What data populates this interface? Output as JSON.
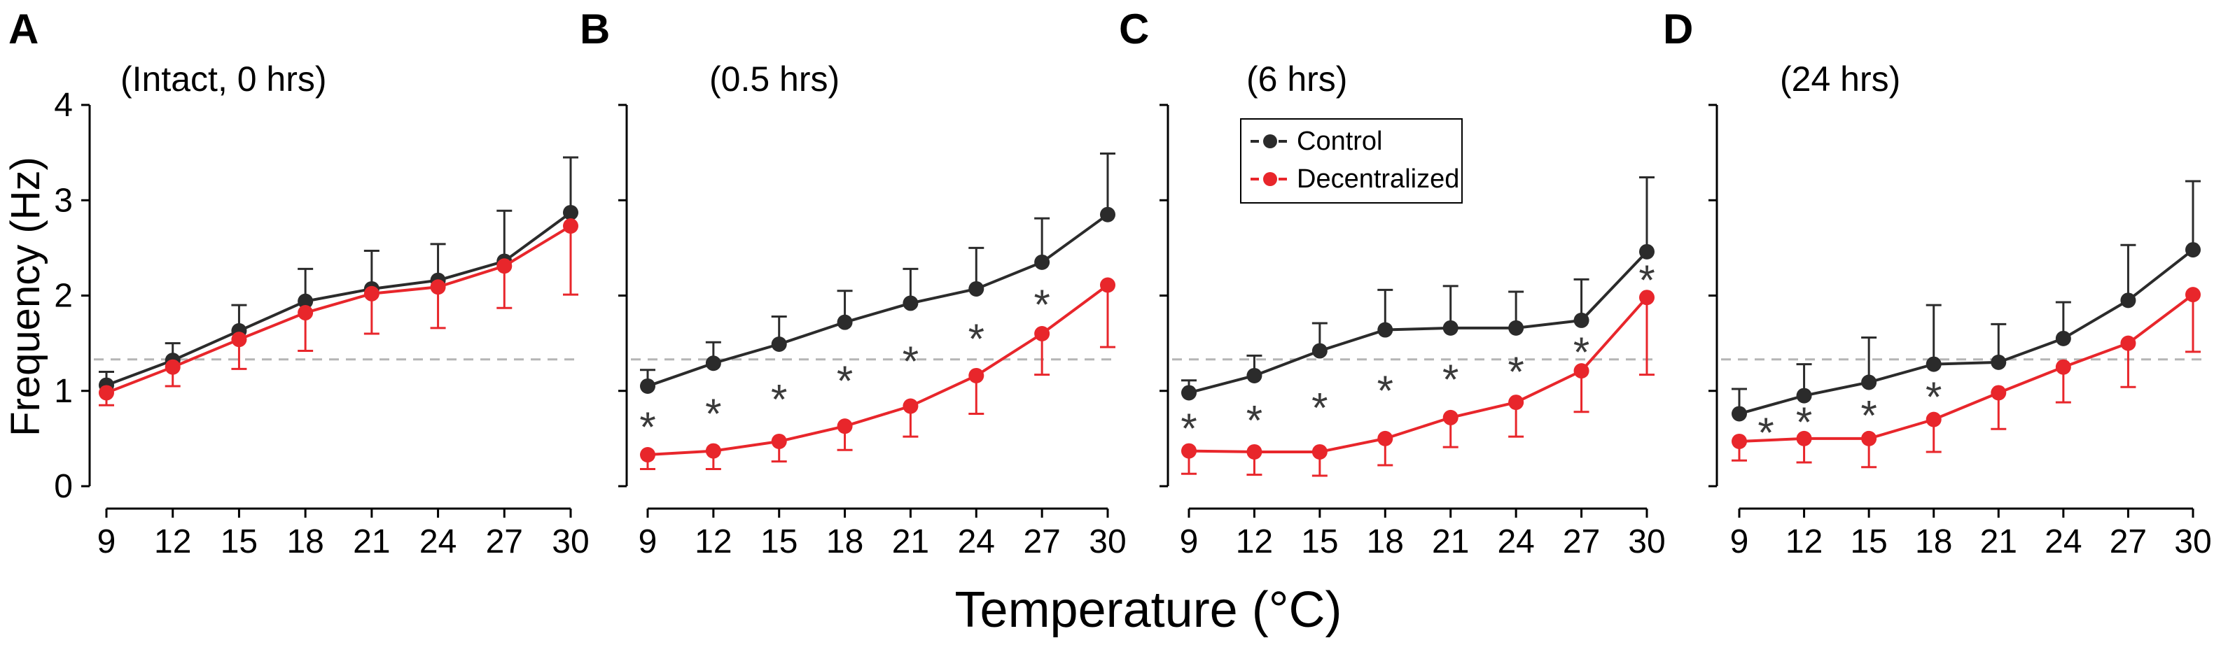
{
  "colors": {
    "control": "#2b2b2b",
    "decentralized": "#e8262b",
    "reference": "#b5b5b5",
    "axis": "#000000",
    "star": "#3a3a3a"
  },
  "shared": {
    "ylabel": "Frequency (Hz)",
    "xlabel": "Temperature (°C)",
    "y_ticks": [
      "0",
      "1",
      "2",
      "3",
      "4"
    ],
    "x_ticks": [
      "9",
      "12",
      "15",
      "18",
      "21",
      "24",
      "27",
      "30"
    ],
    "reference_value": 1.33
  },
  "legend": {
    "control_label": "Control",
    "decentralized_label": "Decentralized"
  },
  "chart_data": [
    {
      "type": "line",
      "panel": "A",
      "title": "(Intact, 0 hrs)",
      "x": [
        9,
        12,
        15,
        18,
        21,
        24,
        27,
        30
      ],
      "xlabel": "Temperature (°C)",
      "ylabel": "Frequency (Hz)",
      "ylim": [
        0,
        4
      ],
      "series": [
        {
          "name": "Control",
          "values": [
            1.06,
            1.32,
            1.63,
            1.94,
            2.07,
            2.16,
            2.36,
            2.87
          ],
          "errors": [
            0.14,
            0.18,
            0.27,
            0.34,
            0.4,
            0.38,
            0.53,
            0.58
          ],
          "error_dir": "up"
        },
        {
          "name": "Decentralized",
          "values": [
            0.98,
            1.25,
            1.54,
            1.82,
            2.02,
            2.09,
            2.31,
            2.73
          ],
          "errors": [
            0.13,
            0.2,
            0.31,
            0.4,
            0.42,
            0.43,
            0.44,
            0.72
          ],
          "error_dir": "down"
        }
      ],
      "significant": []
    },
    {
      "type": "line",
      "panel": "B",
      "title": "(0.5 hrs)",
      "x": [
        9,
        12,
        15,
        18,
        21,
        24,
        27,
        30
      ],
      "xlabel": "Temperature (°C)",
      "ylabel": "Frequency (Hz)",
      "ylim": [
        0,
        4
      ],
      "series": [
        {
          "name": "Control",
          "values": [
            1.05,
            1.29,
            1.49,
            1.72,
            1.92,
            2.07,
            2.35,
            2.85
          ],
          "errors": [
            0.17,
            0.22,
            0.29,
            0.33,
            0.36,
            0.43,
            0.46,
            0.64
          ],
          "error_dir": "up"
        },
        {
          "name": "Decentralized",
          "values": [
            0.33,
            0.37,
            0.47,
            0.63,
            0.84,
            1.16,
            1.6,
            2.11
          ],
          "errors": [
            0.15,
            0.19,
            0.21,
            0.25,
            0.32,
            0.4,
            0.43,
            0.65
          ],
          "error_dir": "down"
        }
      ],
      "significant": [
        9,
        12,
        15,
        18,
        21,
        24,
        27
      ]
    },
    {
      "type": "line",
      "panel": "C",
      "title": "(6 hrs)",
      "x": [
        9,
        12,
        15,
        18,
        21,
        24,
        27,
        30
      ],
      "xlabel": "Temperature (°C)",
      "ylabel": "Frequency (Hz)",
      "ylim": [
        0,
        4
      ],
      "series": [
        {
          "name": "Control",
          "values": [
            0.98,
            1.16,
            1.42,
            1.64,
            1.66,
            1.66,
            1.74,
            2.46
          ],
          "errors": [
            0.13,
            0.21,
            0.29,
            0.42,
            0.44,
            0.38,
            0.43,
            0.78
          ],
          "error_dir": "up"
        },
        {
          "name": "Decentralized",
          "values": [
            0.37,
            0.36,
            0.36,
            0.5,
            0.72,
            0.88,
            1.21,
            1.98
          ],
          "errors": [
            0.24,
            0.24,
            0.25,
            0.28,
            0.31,
            0.36,
            0.43,
            0.81
          ],
          "error_dir": "down"
        }
      ],
      "significant": [
        9,
        12,
        15,
        18,
        21,
        24,
        27,
        30
      ]
    },
    {
      "type": "line",
      "panel": "D",
      "title": "(24 hrs)",
      "x": [
        9,
        12,
        15,
        18,
        21,
        24,
        27,
        30
      ],
      "xlabel": "Temperature (°C)",
      "ylabel": "Frequency (Hz)",
      "ylim": [
        0,
        4
      ],
      "series": [
        {
          "name": "Control",
          "values": [
            0.76,
            0.95,
            1.09,
            1.28,
            1.3,
            1.55,
            1.95,
            2.48
          ],
          "errors": [
            0.26,
            0.33,
            0.47,
            0.62,
            0.4,
            0.38,
            0.58,
            0.72
          ],
          "error_dir": "up"
        },
        {
          "name": "Decentralized",
          "values": [
            0.47,
            0.5,
            0.5,
            0.7,
            0.98,
            1.25,
            1.5,
            2.01
          ],
          "errors": [
            0.2,
            0.25,
            0.3,
            0.34,
            0.38,
            0.37,
            0.46,
            0.6
          ],
          "error_dir": "down"
        }
      ],
      "significant": [
        9,
        12,
        15,
        18
      ]
    }
  ]
}
